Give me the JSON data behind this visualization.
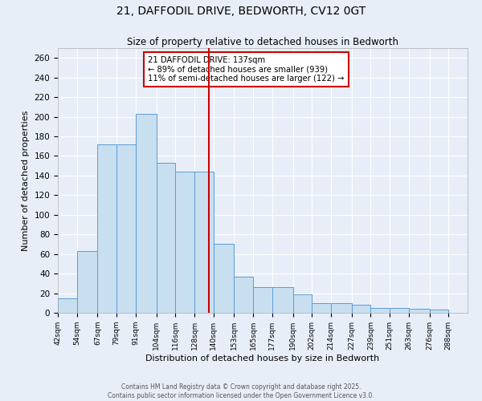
{
  "title": "21, DAFFODIL DRIVE, BEDWORTH, CV12 0GT",
  "subtitle": "Size of property relative to detached houses in Bedworth",
  "xlabel": "Distribution of detached houses by size in Bedworth",
  "ylabel": "Number of detached properties",
  "bin_labels": [
    "42sqm",
    "54sqm",
    "67sqm",
    "79sqm",
    "91sqm",
    "104sqm",
    "116sqm",
    "128sqm",
    "140sqm",
    "153sqm",
    "165sqm",
    "177sqm",
    "190sqm",
    "202sqm",
    "214sqm",
    "227sqm",
    "239sqm",
    "251sqm",
    "263sqm",
    "276sqm",
    "288sqm"
  ],
  "bin_edges": [
    42,
    54,
    67,
    79,
    91,
    104,
    116,
    128,
    140,
    153,
    165,
    177,
    190,
    202,
    214,
    227,
    239,
    251,
    263,
    276,
    288
  ],
  "bar_heights": [
    15,
    63,
    172,
    172,
    203,
    153,
    144,
    144,
    70,
    37,
    26,
    26,
    19,
    10,
    10,
    8,
    5,
    5,
    4,
    3
  ],
  "bar_color": "#c8dff0",
  "bar_edge_color": "#5b9bd5",
  "vline_x": 137,
  "vline_color": "#cc0000",
  "annotation_title": "21 DAFFODIL DRIVE: 137sqm",
  "annotation_line1": "← 89% of detached houses are smaller (939)",
  "annotation_line2": "11% of semi-detached houses are larger (122) →",
  "annotation_box_edgecolor": "#cc0000",
  "ylim": [
    0,
    270
  ],
  "yticks": [
    0,
    20,
    40,
    60,
    80,
    100,
    120,
    140,
    160,
    180,
    200,
    220,
    240,
    260
  ],
  "background_color": "#e8eef8",
  "grid_color": "#ffffff",
  "footer_line1": "Contains HM Land Registry data © Crown copyright and database right 2025.",
  "footer_line2": "Contains public sector information licensed under the Open Government Licence v3.0."
}
